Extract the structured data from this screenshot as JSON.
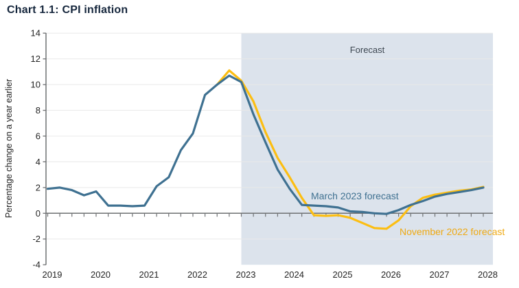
{
  "title": "Chart 1.1: CPI inflation",
  "colors": {
    "forecast_shade": "#dce3ec",
    "gridline": "#e9e9e9",
    "axis": "#6e7072",
    "tick_label": "#232323",
    "title_text": "#15263c",
    "forecast_label_text": "#3c4650"
  },
  "chart_data": {
    "type": "line",
    "title": "Chart 1.1: CPI inflation",
    "xlabel": "",
    "ylabel": "Percentage change on a year earlier",
    "ylim": [
      -4,
      14
    ],
    "yticks": [
      14,
      12,
      10,
      8,
      6,
      4,
      2,
      0,
      -2,
      -4
    ],
    "xtick_years": [
      2019,
      2020,
      2021,
      2022,
      2023,
      2024,
      2025,
      2026,
      2027,
      2028
    ],
    "x_unit": "quarterly",
    "grid": "horizontal",
    "legend_position": "inline-labels",
    "forecast_region": {
      "label": "Forecast",
      "x_start": 2023.0,
      "x_end": 2028.6
    },
    "series": [
      {
        "name": "March 2023 forecast",
        "color": "#3f7191",
        "label_color": "#3f7191",
        "x_start": 2019.0,
        "x_step": 0.25,
        "values": [
          1.9,
          2.0,
          1.8,
          1.4,
          1.7,
          0.6,
          0.6,
          0.55,
          0.6,
          2.1,
          2.8,
          4.9,
          6.2,
          9.2,
          10.0,
          10.7,
          10.2,
          7.7,
          5.5,
          3.4,
          1.9,
          0.65,
          0.6,
          0.55,
          0.45,
          0.15,
          0.1,
          0.0,
          -0.05,
          0.25,
          0.65,
          0.95,
          1.3,
          1.5,
          1.65,
          1.8,
          2.0
        ]
      },
      {
        "name": "November 2022 forecast",
        "color": "#fcbe12",
        "label_color": "#efa912",
        "x_start": 2022.5,
        "x_step": 0.25,
        "values": [
          10.0,
          11.1,
          10.3,
          8.7,
          6.3,
          4.3,
          2.8,
          1.2,
          -0.15,
          -0.2,
          -0.15,
          -0.35,
          -0.75,
          -1.15,
          -1.2,
          -0.55,
          0.55,
          1.2,
          1.45,
          1.6,
          1.75,
          1.85,
          2.05
        ]
      }
    ]
  }
}
